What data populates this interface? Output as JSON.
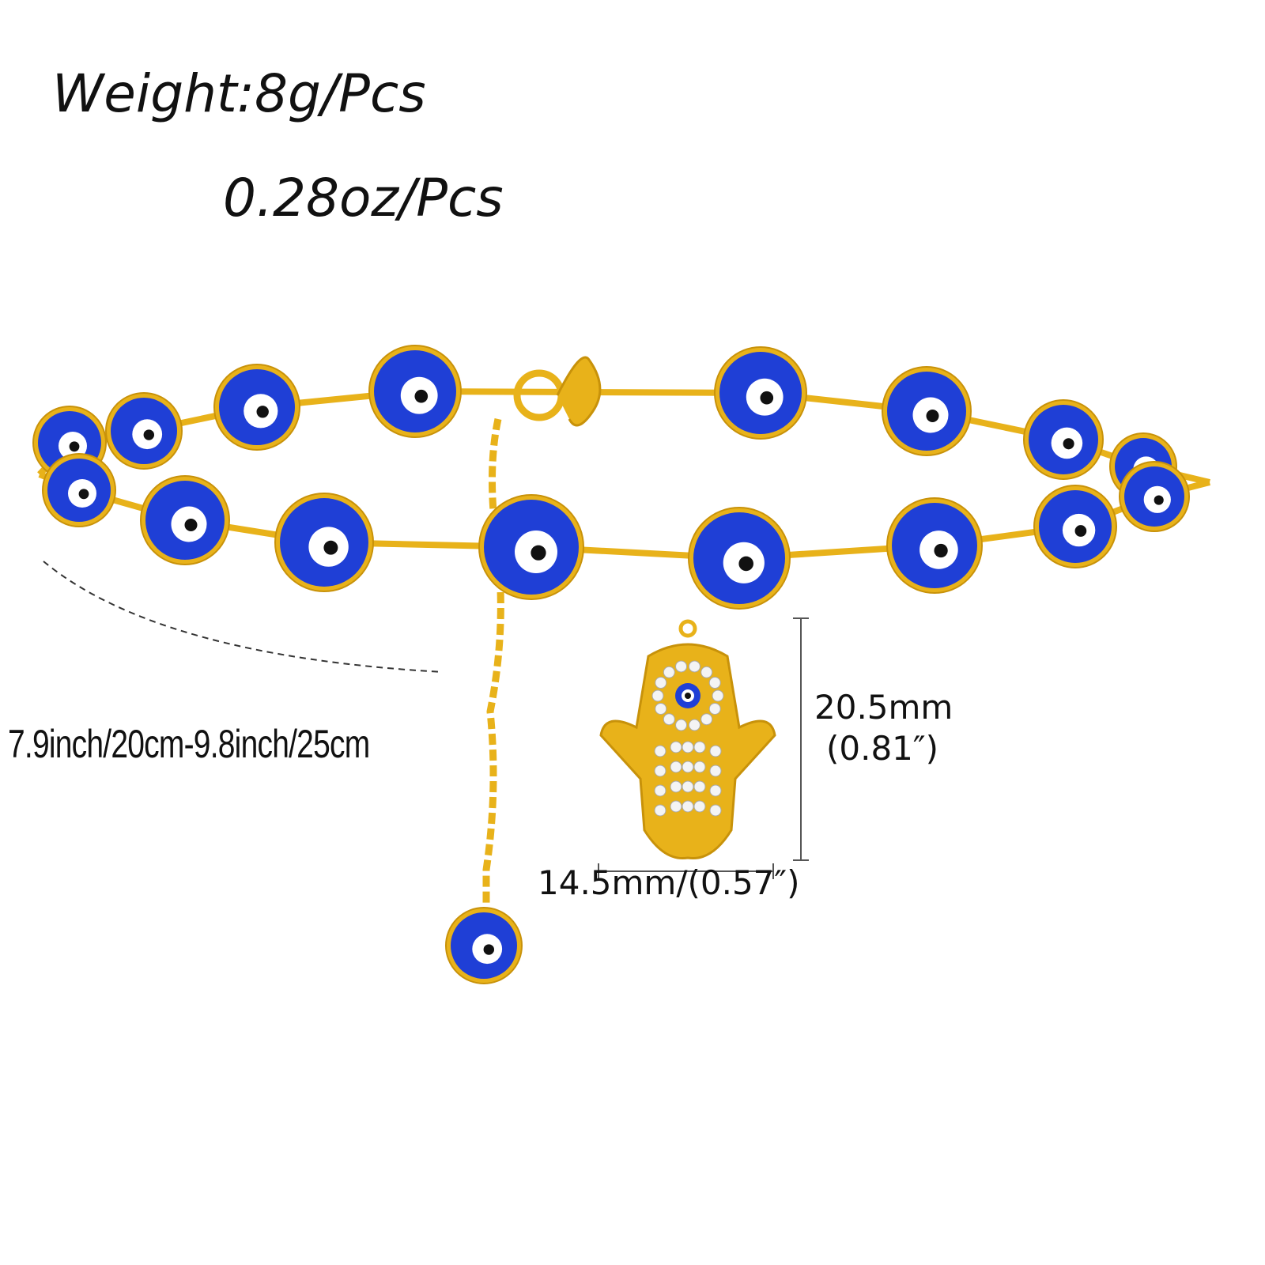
{
  "weight": {
    "grams": "Weight:8g/Pcs",
    "ounces": "0.28oz/Pcs"
  },
  "length_label": "7.9inch/20cm-9.8inch/25cm",
  "charm": {
    "height_mm": "20.5mm",
    "height_in": "(0.81″)",
    "width": "14.5mm/(0.57″)"
  },
  "colors": {
    "gold": "#e8b21a",
    "bead_blue": "#1f3fd6",
    "text": "#111111"
  },
  "icons": [
    "evil-eye-bead",
    "hamsa-hand-charm",
    "lobster-clasp"
  ]
}
